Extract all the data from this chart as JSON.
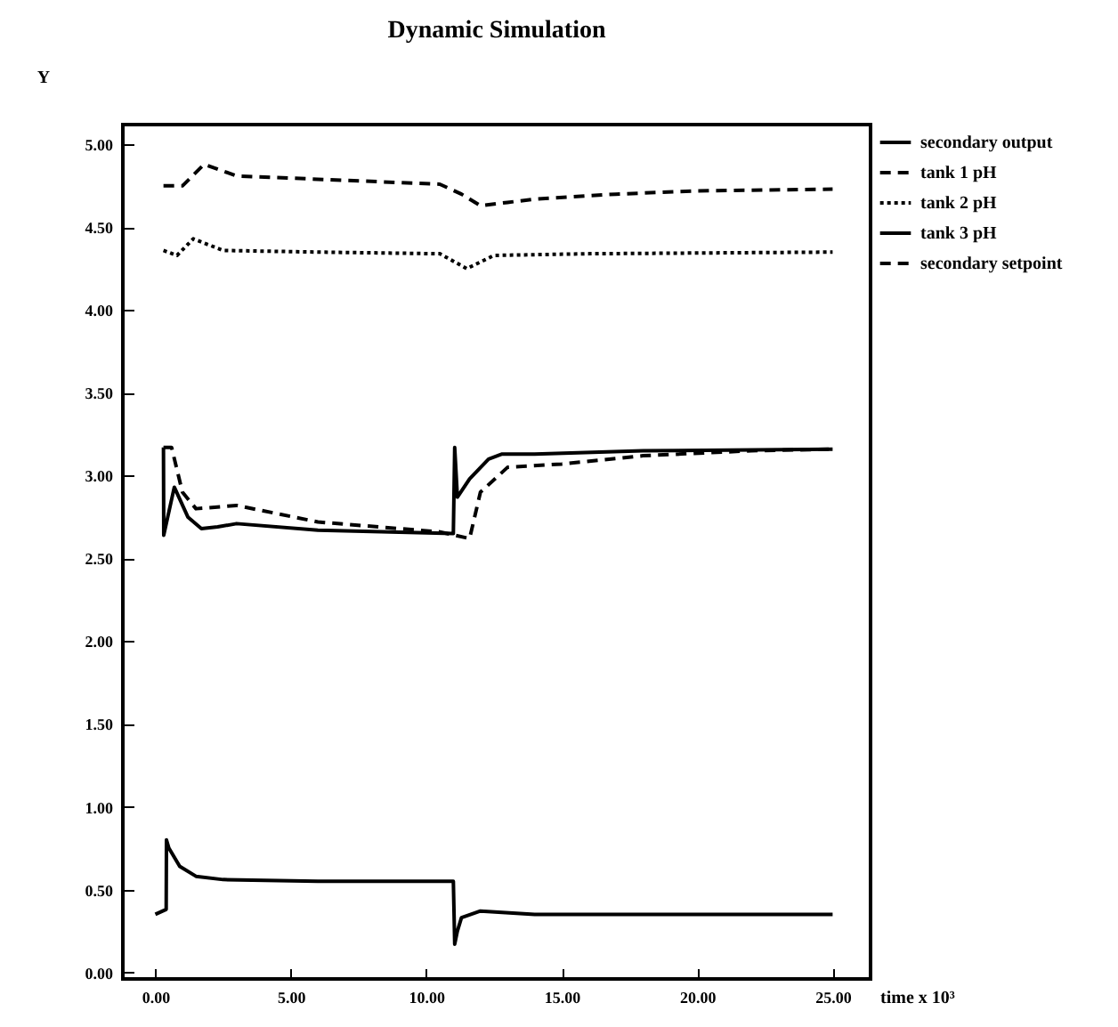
{
  "chart_data": {
    "type": "line",
    "title": "Dynamic Simulation",
    "xlabel": "time x 10³",
    "ylabel": "Y",
    "xlim": [
      -1.2,
      26.4
    ],
    "ylim": [
      -0.04,
      5.12
    ],
    "xticks": [
      {
        "value": 0,
        "label": "0.00"
      },
      {
        "value": 5,
        "label": "5.00"
      },
      {
        "value": 10,
        "label": "10.00"
      },
      {
        "value": 15,
        "label": "15.00"
      },
      {
        "value": 20,
        "label": "20.00"
      },
      {
        "value": 25,
        "label": "25.00"
      }
    ],
    "yticks": [
      {
        "value": 0,
        "label": "0.00"
      },
      {
        "value": 0.5,
        "label": "0.50"
      },
      {
        "value": 1,
        "label": "1.00"
      },
      {
        "value": 1.5,
        "label": "1.50"
      },
      {
        "value": 2,
        "label": "2.00"
      },
      {
        "value": 2.5,
        "label": "2.50"
      },
      {
        "value": 3,
        "label": "3.00"
      },
      {
        "value": 3.5,
        "label": "3.50"
      },
      {
        "value": 4,
        "label": "4.00"
      },
      {
        "value": 4.5,
        "label": "4.50"
      },
      {
        "value": 5,
        "label": "5.00"
      }
    ],
    "grid": false,
    "legend": "top right",
    "marker": "none",
    "series": [
      {
        "name": "secondary output",
        "color": "#000000",
        "line_style": "solid",
        "x": [
          0.3,
          0.31,
          0.7,
          1.2,
          1.7,
          2.3,
          3,
          6,
          11,
          11.05,
          11.15,
          11.6,
          12.3,
          12.8,
          14,
          18,
          25
        ],
        "values": [
          3.17,
          2.64,
          2.93,
          2.75,
          2.68,
          2.69,
          2.71,
          2.67,
          2.65,
          3.17,
          2.87,
          2.98,
          3.1,
          3.13,
          3.13,
          3.15,
          3.16
        ]
      },
      {
        "name": "tank 1 pH",
        "color": "#000000",
        "line_style": "dashed",
        "x": [
          0.3,
          1,
          1.8,
          3,
          6,
          10.5,
          11.3,
          12,
          13,
          14,
          17,
          20,
          25
        ],
        "values": [
          4.75,
          4.75,
          4.88,
          4.81,
          4.79,
          4.76,
          4.7,
          4.63,
          4.65,
          4.67,
          4.7,
          4.72,
          4.73
        ]
      },
      {
        "name": "tank 2 pH",
        "color": "#000000",
        "line_style": "dotted",
        "x": [
          0.3,
          0.8,
          1.4,
          2.5,
          6,
          10.5,
          11.5,
          12.5,
          16,
          25
        ],
        "values": [
          4.36,
          4.33,
          4.43,
          4.36,
          4.35,
          4.34,
          4.25,
          4.33,
          4.34,
          4.35
        ]
      },
      {
        "name": "tank 3 pH",
        "color": "#000000",
        "line_style": "solid",
        "x": [
          0,
          0.4,
          0.41,
          0.5,
          0.9,
          1.5,
          2.5,
          6,
          11,
          11.05,
          11.15,
          11.3,
          12,
          14,
          25
        ],
        "values": [
          0.35,
          0.38,
          0.8,
          0.75,
          0.64,
          0.58,
          0.56,
          0.55,
          0.55,
          0.17,
          0.25,
          0.33,
          0.37,
          0.35,
          0.35
        ]
      },
      {
        "name": "secondary setpoint",
        "color": "#000000",
        "line_style": "dashed",
        "x": [
          0.3,
          0.6,
          1,
          1.5,
          3,
          6,
          10.5,
          11.6,
          12,
          13,
          15,
          18,
          22,
          25
        ],
        "values": [
          3.17,
          3.17,
          2.9,
          2.8,
          2.82,
          2.72,
          2.66,
          2.62,
          2.9,
          3.05,
          3.07,
          3.12,
          3.15,
          3.16
        ]
      }
    ]
  }
}
